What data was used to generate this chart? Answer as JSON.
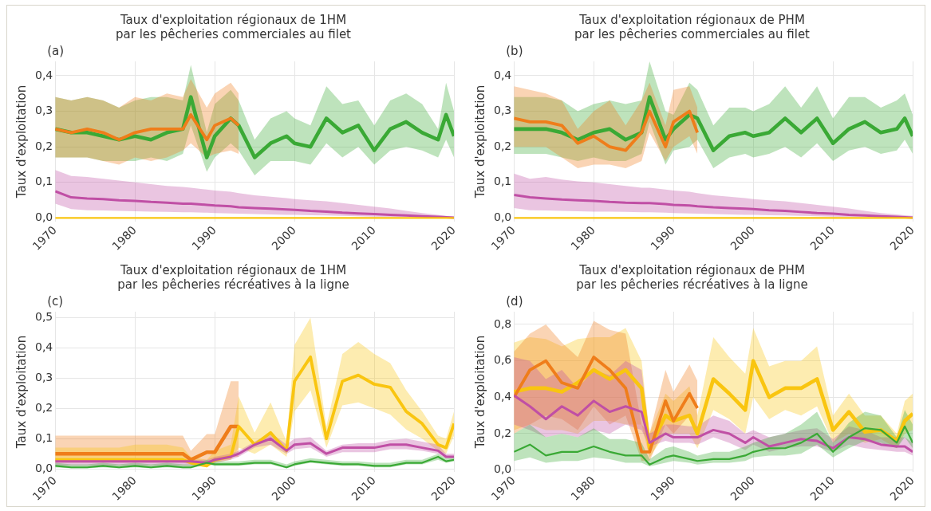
{
  "chart_data": [
    {
      "type": "line",
      "title": "Taux d'exploitation régionaux de 1HM\npar les pêcheries commerciales au filet",
      "ylabel": "Taux d'exploitation",
      "annotations": [
        "(a)"
      ],
      "grid": true,
      "legend": false,
      "x": [
        1970,
        1972,
        1974,
        1976,
        1978,
        1980,
        1982,
        1984,
        1986,
        1987,
        1989,
        1990,
        1992,
        1993,
        1995,
        1997,
        1999,
        2000,
        2002,
        2004,
        2006,
        2008,
        2010,
        2012,
        2014,
        2016,
        2018,
        2019,
        2020
      ],
      "xlim": [
        1970,
        2020
      ],
      "xticks": [
        1970,
        1980,
        1990,
        2000,
        2010,
        2020
      ],
      "ylim": [
        -0.01,
        0.44
      ],
      "yticks": [
        {
          "value": 0,
          "label": "0,0"
        },
        {
          "value": 0.1,
          "label": "0,1"
        },
        {
          "value": 0.2,
          "label": "0,2"
        },
        {
          "value": 0.3,
          "label": "0,3"
        },
        {
          "value": 0.4,
          "label": "0,4"
        }
      ],
      "series": [
        {
          "color": "#3aa935",
          "values": [
            0.25,
            0.24,
            0.24,
            0.23,
            0.22,
            0.23,
            0.22,
            0.24,
            0.25,
            0.34,
            0.17,
            0.23,
            0.28,
            0.26,
            0.17,
            0.21,
            0.23,
            0.21,
            0.2,
            0.28,
            0.24,
            0.26,
            0.19,
            0.25,
            0.27,
            0.24,
            0.22,
            0.29,
            0.23
          ],
          "lower": [
            0.17,
            0.17,
            0.17,
            0.16,
            0.16,
            0.16,
            0.17,
            0.16,
            0.18,
            0.26,
            0.13,
            0.17,
            0.21,
            0.19,
            0.12,
            0.16,
            0.16,
            0.16,
            0.15,
            0.21,
            0.17,
            0.2,
            0.15,
            0.19,
            0.2,
            0.19,
            0.17,
            0.22,
            0.17
          ],
          "upper": [
            0.34,
            0.33,
            0.34,
            0.33,
            0.31,
            0.33,
            0.34,
            0.34,
            0.33,
            0.43,
            0.24,
            0.32,
            0.36,
            0.33,
            0.22,
            0.28,
            0.3,
            0.28,
            0.26,
            0.37,
            0.32,
            0.33,
            0.26,
            0.33,
            0.35,
            0.32,
            0.25,
            0.38,
            0.3
          ]
        },
        {
          "color": "#ef7d1a",
          "x": [
            1970,
            1972,
            1974,
            1976,
            1978,
            1980,
            1982,
            1984,
            1986,
            1987,
            1989,
            1990,
            1992,
            1993
          ],
          "values": [
            0.25,
            0.24,
            0.25,
            0.24,
            0.22,
            0.24,
            0.25,
            0.25,
            0.25,
            0.29,
            0.22,
            0.26,
            0.28,
            0.26
          ],
          "lower": [
            0.17,
            0.17,
            0.17,
            0.16,
            0.15,
            0.17,
            0.16,
            0.17,
            0.19,
            0.21,
            0.17,
            0.18,
            0.19,
            0.18
          ],
          "upper": [
            0.34,
            0.33,
            0.34,
            0.33,
            0.31,
            0.34,
            0.33,
            0.35,
            0.34,
            0.39,
            0.31,
            0.35,
            0.38,
            0.35
          ]
        },
        {
          "color": "#c04fa5",
          "values": [
            0.075,
            0.058,
            0.055,
            0.053,
            0.05,
            0.048,
            0.045,
            0.043,
            0.04,
            0.04,
            0.037,
            0.035,
            0.033,
            0.03,
            0.028,
            0.026,
            0.024,
            0.023,
            0.02,
            0.018,
            0.015,
            0.013,
            0.011,
            0.009,
            0.007,
            0.005,
            0.003,
            0.002,
            0.001
          ],
          "lower": [
            0.04,
            0.025,
            0.022,
            0.021,
            0.02,
            0.019,
            0.018,
            0.017,
            0.016,
            0.016,
            0.015,
            0.014,
            0.013,
            0.012,
            0.011,
            0.01,
            0.009,
            0.009,
            0.008,
            0.007,
            0.006,
            0.005,
            0.004,
            0.003,
            0.003,
            0.002,
            0.001,
            0.001,
            0.001
          ],
          "upper": [
            0.135,
            0.118,
            0.115,
            0.11,
            0.105,
            0.1,
            0.095,
            0.09,
            0.087,
            0.085,
            0.08,
            0.077,
            0.074,
            0.07,
            0.064,
            0.06,
            0.056,
            0.053,
            0.05,
            0.047,
            0.042,
            0.037,
            0.032,
            0.027,
            0.02,
            0.014,
            0.009,
            0.006,
            0.004
          ]
        },
        {
          "color": "#f9c510",
          "x": [
            1970,
            2020
          ],
          "values": [
            0,
            0
          ]
        }
      ]
    },
    {
      "type": "line",
      "title": "Taux d'exploitation régionaux de PHM\npar les pêcheries commerciales au filet",
      "ylabel": "Taux d'exploitation",
      "annotations": [
        "(b)"
      ],
      "grid": true,
      "legend": false,
      "x": [
        1970,
        1972,
        1974,
        1976,
        1978,
        1980,
        1982,
        1984,
        1986,
        1987,
        1989,
        1990,
        1992,
        1993,
        1995,
        1997,
        1999,
        2000,
        2002,
        2004,
        2006,
        2008,
        2010,
        2012,
        2014,
        2016,
        2018,
        2019,
        2020
      ],
      "xlim": [
        1970,
        2020
      ],
      "xticks": [
        1970,
        1980,
        1990,
        2000,
        2010,
        2020
      ],
      "ylim": [
        -0.01,
        0.44
      ],
      "yticks": [
        {
          "value": 0,
          "label": "0,0"
        },
        {
          "value": 0.1,
          "label": "0,1"
        },
        {
          "value": 0.2,
          "label": "0,2"
        },
        {
          "value": 0.3,
          "label": "0,3"
        },
        {
          "value": 0.4,
          "label": "0,4"
        }
      ],
      "series": [
        {
          "color": "#3aa935",
          "values": [
            0.25,
            0.25,
            0.25,
            0.24,
            0.22,
            0.24,
            0.25,
            0.22,
            0.24,
            0.34,
            0.22,
            0.25,
            0.29,
            0.28,
            0.19,
            0.23,
            0.24,
            0.23,
            0.24,
            0.28,
            0.24,
            0.28,
            0.21,
            0.25,
            0.27,
            0.24,
            0.25,
            0.28,
            0.23
          ],
          "lower": [
            0.18,
            0.18,
            0.18,
            0.17,
            0.16,
            0.17,
            0.16,
            0.16,
            0.18,
            0.27,
            0.15,
            0.19,
            0.2,
            0.22,
            0.14,
            0.17,
            0.18,
            0.17,
            0.18,
            0.2,
            0.17,
            0.21,
            0.16,
            0.19,
            0.2,
            0.18,
            0.19,
            0.22,
            0.18
          ],
          "upper": [
            0.34,
            0.34,
            0.34,
            0.33,
            0.3,
            0.32,
            0.33,
            0.32,
            0.33,
            0.44,
            0.3,
            0.29,
            0.38,
            0.36,
            0.26,
            0.31,
            0.31,
            0.3,
            0.32,
            0.37,
            0.31,
            0.37,
            0.28,
            0.34,
            0.34,
            0.31,
            0.33,
            0.35,
            0.29
          ]
        },
        {
          "color": "#ef7d1a",
          "x": [
            1970,
            1972,
            1974,
            1976,
            1978,
            1980,
            1982,
            1984,
            1986,
            1987,
            1989,
            1990,
            1992,
            1993
          ],
          "values": [
            0.28,
            0.27,
            0.27,
            0.26,
            0.21,
            0.23,
            0.2,
            0.19,
            0.24,
            0.3,
            0.2,
            0.27,
            0.3,
            0.24
          ],
          "lower": [
            0.2,
            0.2,
            0.2,
            0.17,
            0.14,
            0.15,
            0.15,
            0.14,
            0.16,
            0.24,
            0.16,
            0.2,
            0.23,
            0.18
          ],
          "upper": [
            0.37,
            0.36,
            0.35,
            0.33,
            0.25,
            0.3,
            0.33,
            0.26,
            0.33,
            0.38,
            0.26,
            0.36,
            0.37,
            0.31
          ]
        },
        {
          "color": "#c04fa5",
          "values": [
            0.065,
            0.058,
            0.055,
            0.052,
            0.05,
            0.048,
            0.045,
            0.043,
            0.042,
            0.042,
            0.039,
            0.037,
            0.035,
            0.033,
            0.03,
            0.028,
            0.026,
            0.025,
            0.022,
            0.02,
            0.017,
            0.014,
            0.012,
            0.009,
            0.007,
            0.005,
            0.003,
            0.002,
            0.001
          ],
          "lower": [
            0.028,
            0.022,
            0.021,
            0.02,
            0.019,
            0.018,
            0.018,
            0.017,
            0.016,
            0.016,
            0.015,
            0.014,
            0.013,
            0.012,
            0.011,
            0.01,
            0.009,
            0.009,
            0.008,
            0.007,
            0.006,
            0.005,
            0.004,
            0.003,
            0.003,
            0.002,
            0.001,
            0.001,
            0.001
          ],
          "upper": [
            0.125,
            0.11,
            0.115,
            0.108,
            0.103,
            0.1,
            0.095,
            0.09,
            0.085,
            0.085,
            0.08,
            0.077,
            0.074,
            0.07,
            0.064,
            0.06,
            0.056,
            0.053,
            0.05,
            0.047,
            0.042,
            0.037,
            0.032,
            0.027,
            0.02,
            0.014,
            0.01,
            0.008,
            0.006
          ]
        },
        {
          "color": "#f9c510",
          "x": [
            1970,
            2020
          ],
          "values": [
            0,
            0
          ]
        }
      ]
    },
    {
      "type": "line",
      "title": "Taux d'exploitation régionaux de 1HM\npar les pêcheries récréatives à la ligne",
      "ylabel": "Taux d'exploitation",
      "annotations": [
        "(c)"
      ],
      "grid": true,
      "legend": false,
      "x": [
        1970,
        1972,
        1974,
        1976,
        1978,
        1980,
        1982,
        1984,
        1986,
        1987,
        1989,
        1990,
        1992,
        1993,
        1995,
        1997,
        1999,
        2000,
        2002,
        2004,
        2006,
        2008,
        2010,
        2012,
        2014,
        2016,
        2018,
        2019,
        2020
      ],
      "xlim": [
        1970,
        2020
      ],
      "xticks": [
        1970,
        1980,
        1990,
        2000,
        2010,
        2020
      ],
      "ylim": [
        -0.01,
        0.52
      ],
      "yticks": [
        {
          "value": 0,
          "label": "0,0"
        },
        {
          "value": 0.1,
          "label": "0,1"
        },
        {
          "value": 0.2,
          "label": "0,2"
        },
        {
          "value": 0.3,
          "label": "0,3"
        },
        {
          "value": 0.4,
          "label": "0,4"
        },
        {
          "value": 0.5,
          "label": "0,5"
        }
      ],
      "series": [
        {
          "color": "#ef7d1a",
          "x": [
            1970,
            1972,
            1974,
            1976,
            1978,
            1980,
            1982,
            1984,
            1986,
            1987,
            1989,
            1990,
            1992,
            1993
          ],
          "values": [
            0.05,
            0.05,
            0.05,
            0.05,
            0.05,
            0.05,
            0.05,
            0.05,
            0.05,
            0.03,
            0.055,
            0.055,
            0.14,
            0.14
          ],
          "lower": [
            0.03,
            0.03,
            0.03,
            0.03,
            0.03,
            0.03,
            0.03,
            0.03,
            0.03,
            0.02,
            0.03,
            0.03,
            0.04,
            0.04
          ],
          "upper": [
            0.11,
            0.11,
            0.11,
            0.11,
            0.11,
            0.11,
            0.11,
            0.11,
            0.11,
            0.06,
            0.115,
            0.115,
            0.29,
            0.29
          ]
        },
        {
          "color": "#f9c510",
          "values": [
            0.03,
            0.03,
            0.03,
            0.03,
            0.03,
            0.03,
            0.03,
            0.03,
            0.03,
            0.02,
            0.01,
            0.03,
            0.04,
            0.14,
            0.08,
            0.12,
            0.06,
            0.29,
            0.37,
            0.1,
            0.29,
            0.31,
            0.28,
            0.27,
            0.19,
            0.15,
            0.08,
            0.07,
            0.15
          ],
          "lower": [
            0.02,
            0.02,
            0.02,
            0.02,
            0.02,
            0.02,
            0.02,
            0.02,
            0.02,
            0.015,
            0.005,
            0.02,
            0.03,
            0.07,
            0.05,
            0.08,
            0.04,
            0.19,
            0.26,
            0.07,
            0.21,
            0.22,
            0.2,
            0.18,
            0.13,
            0.1,
            0.06,
            0.05,
            0.11
          ],
          "upper": [
            0.07,
            0.07,
            0.07,
            0.07,
            0.07,
            0.08,
            0.08,
            0.08,
            0.07,
            0.04,
            0.03,
            0.06,
            0.08,
            0.24,
            0.12,
            0.22,
            0.09,
            0.41,
            0.5,
            0.14,
            0.38,
            0.42,
            0.38,
            0.35,
            0.26,
            0.19,
            0.11,
            0.1,
            0.19
          ]
        },
        {
          "color": "#c04fa5",
          "values": [
            0.025,
            0.025,
            0.025,
            0.025,
            0.025,
            0.025,
            0.025,
            0.025,
            0.025,
            0.025,
            0.02,
            0.03,
            0.04,
            0.05,
            0.08,
            0.1,
            0.06,
            0.08,
            0.085,
            0.05,
            0.07,
            0.07,
            0.07,
            0.08,
            0.08,
            0.07,
            0.06,
            0.04,
            0.04
          ],
          "lower": [
            0.01,
            0.01,
            0.01,
            0.01,
            0.01,
            0.01,
            0.01,
            0.01,
            0.01,
            0.01,
            0.015,
            0.02,
            0.03,
            0.04,
            0.07,
            0.08,
            0.05,
            0.065,
            0.07,
            0.04,
            0.055,
            0.055,
            0.055,
            0.065,
            0.065,
            0.06,
            0.05,
            0.035,
            0.035
          ],
          "upper": [
            0.03,
            0.03,
            0.03,
            0.03,
            0.03,
            0.03,
            0.03,
            0.03,
            0.03,
            0.03,
            0.03,
            0.04,
            0.05,
            0.06,
            0.09,
            0.12,
            0.08,
            0.1,
            0.105,
            0.06,
            0.08,
            0.085,
            0.085,
            0.095,
            0.1,
            0.09,
            0.08,
            0.05,
            0.05
          ]
        },
        {
          "color": "#3aa935",
          "values": [
            0.01,
            0.005,
            0.005,
            0.01,
            0.005,
            0.01,
            0.005,
            0.01,
            0.005,
            0.005,
            0.02,
            0.015,
            0.015,
            0.015,
            0.02,
            0.02,
            0.005,
            0.015,
            0.025,
            0.02,
            0.015,
            0.015,
            0.01,
            0.01,
            0.02,
            0.02,
            0.04,
            0.025,
            0.03
          ],
          "lower": [
            0.005,
            0.002,
            0.002,
            0.005,
            0.002,
            0.005,
            0.002,
            0.005,
            0.002,
            0.002,
            0.015,
            0.01,
            0.01,
            0.01,
            0.015,
            0.015,
            0.002,
            0.01,
            0.02,
            0.015,
            0.01,
            0.01,
            0.005,
            0.005,
            0.015,
            0.015,
            0.03,
            0.02,
            0.025
          ],
          "upper": [
            0.02,
            0.015,
            0.015,
            0.02,
            0.015,
            0.02,
            0.015,
            0.02,
            0.015,
            0.015,
            0.03,
            0.025,
            0.025,
            0.025,
            0.03,
            0.03,
            0.015,
            0.025,
            0.035,
            0.03,
            0.025,
            0.025,
            0.02,
            0.02,
            0.03,
            0.03,
            0.05,
            0.035,
            0.04
          ]
        }
      ]
    },
    {
      "type": "line",
      "title": "Taux d'exploitation régionaux de PHM\npar les pêcheries récréatives à la ligne",
      "ylabel": "Taux d'exploitation",
      "annotations": [
        "(d)"
      ],
      "grid": true,
      "legend": false,
      "x": [
        1970,
        1972,
        1974,
        1976,
        1978,
        1980,
        1982,
        1984,
        1986,
        1987,
        1989,
        1990,
        1992,
        1993,
        1995,
        1997,
        1999,
        2000,
        2002,
        2004,
        2006,
        2008,
        2010,
        2012,
        2014,
        2016,
        2018,
        2019,
        2020
      ],
      "xlim": [
        1970,
        2020
      ],
      "xticks": [
        1970,
        1980,
        1990,
        2000,
        2010,
        2020
      ],
      "ylim": [
        -0.01,
        0.87
      ],
      "yticks": [
        {
          "value": 0,
          "label": "0,0"
        },
        {
          "value": 0.2,
          "label": "0,2"
        },
        {
          "value": 0.4,
          "label": "0,4"
        },
        {
          "value": 0.6,
          "label": "0,6"
        },
        {
          "value": 0.8,
          "label": "0,8"
        }
      ],
      "series": [
        {
          "color": "#f9c510",
          "values": [
            0.43,
            0.45,
            0.45,
            0.43,
            0.48,
            0.55,
            0.5,
            0.55,
            0.45,
            0.12,
            0.3,
            0.27,
            0.3,
            0.2,
            0.5,
            0.42,
            0.33,
            0.6,
            0.4,
            0.45,
            0.45,
            0.5,
            0.22,
            0.32,
            0.21,
            0.22,
            0.16,
            0.27,
            0.31
          ],
          "lower": [
            0.22,
            0.25,
            0.22,
            0.22,
            0.2,
            0.27,
            0.27,
            0.25,
            0.25,
            0.07,
            0.2,
            0.2,
            0.2,
            0.12,
            0.33,
            0.28,
            0.2,
            0.4,
            0.28,
            0.33,
            0.3,
            0.35,
            0.15,
            0.2,
            0.15,
            0.17,
            0.12,
            0.2,
            0.22
          ],
          "upper": [
            0.7,
            0.73,
            0.72,
            0.68,
            0.72,
            0.73,
            0.73,
            0.78,
            0.6,
            0.2,
            0.42,
            0.38,
            0.46,
            0.3,
            0.73,
            0.62,
            0.53,
            0.78,
            0.57,
            0.6,
            0.6,
            0.68,
            0.3,
            0.42,
            0.3,
            0.3,
            0.2,
            0.38,
            0.42
          ]
        },
        {
          "color": "#ef7d1a",
          "x": [
            1970,
            1972,
            1974,
            1976,
            1978,
            1980,
            1982,
            1984,
            1986,
            1987,
            1989,
            1990,
            1992,
            1993
          ],
          "values": [
            0.4,
            0.55,
            0.6,
            0.48,
            0.45,
            0.62,
            0.55,
            0.45,
            0.1,
            0.1,
            0.38,
            0.27,
            0.42,
            0.34
          ],
          "lower": [
            0.2,
            0.25,
            0.3,
            0.28,
            0.22,
            0.35,
            0.25,
            0.3,
            0.05,
            0.05,
            0.25,
            0.2,
            0.3,
            0.22
          ],
          "upper": [
            0.65,
            0.75,
            0.8,
            0.7,
            0.62,
            0.82,
            0.77,
            0.75,
            0.25,
            0.2,
            0.55,
            0.43,
            0.58,
            0.49
          ]
        },
        {
          "color": "#c04fa5",
          "values": [
            0.41,
            0.35,
            0.28,
            0.35,
            0.3,
            0.38,
            0.32,
            0.35,
            0.32,
            0.15,
            0.2,
            0.18,
            0.18,
            0.18,
            0.22,
            0.2,
            0.15,
            0.18,
            0.13,
            0.15,
            0.17,
            0.16,
            0.12,
            0.18,
            0.17,
            0.14,
            0.13,
            0.13,
            0.1
          ],
          "lower": [
            0.25,
            0.22,
            0.18,
            0.2,
            0.18,
            0.22,
            0.2,
            0.25,
            0.22,
            0.13,
            0.16,
            0.15,
            0.15,
            0.14,
            0.18,
            0.15,
            0.11,
            0.14,
            0.1,
            0.12,
            0.13,
            0.13,
            0.1,
            0.14,
            0.12,
            0.11,
            0.1,
            0.1,
            0.08
          ],
          "upper": [
            0.62,
            0.6,
            0.5,
            0.55,
            0.45,
            0.55,
            0.52,
            0.6,
            0.55,
            0.2,
            0.25,
            0.25,
            0.24,
            0.24,
            0.3,
            0.27,
            0.2,
            0.22,
            0.18,
            0.2,
            0.22,
            0.23,
            0.17,
            0.24,
            0.22,
            0.18,
            0.18,
            0.18,
            0.15
          ]
        },
        {
          "color": "#3aa935",
          "values": [
            0.1,
            0.14,
            0.08,
            0.1,
            0.1,
            0.13,
            0.1,
            0.08,
            0.08,
            0.03,
            0.07,
            0.08,
            0.06,
            0.05,
            0.06,
            0.06,
            0.08,
            0.1,
            0.12,
            0.12,
            0.15,
            0.2,
            0.1,
            0.18,
            0.23,
            0.22,
            0.15,
            0.24,
            0.15
          ],
          "lower": [
            0.05,
            0.07,
            0.04,
            0.05,
            0.05,
            0.07,
            0.06,
            0.04,
            0.04,
            0.02,
            0.04,
            0.05,
            0.04,
            0.03,
            0.04,
            0.04,
            0.05,
            0.07,
            0.08,
            0.08,
            0.09,
            0.14,
            0.07,
            0.12,
            0.16,
            0.15,
            0.12,
            0.18,
            0.12
          ],
          "upper": [
            0.2,
            0.25,
            0.18,
            0.2,
            0.18,
            0.23,
            0.17,
            0.17,
            0.15,
            0.06,
            0.12,
            0.13,
            0.1,
            0.08,
            0.1,
            0.1,
            0.13,
            0.15,
            0.18,
            0.2,
            0.25,
            0.32,
            0.15,
            0.26,
            0.32,
            0.3,
            0.18,
            0.33,
            0.25
          ]
        }
      ]
    }
  ]
}
